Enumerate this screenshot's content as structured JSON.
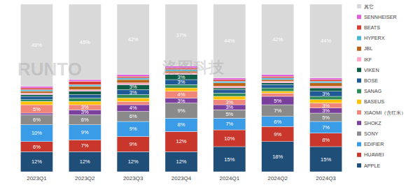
{
  "chart_data": {
    "type": "bar",
    "stacked": true,
    "data_labels": true,
    "legend": "right",
    "tick_labels": "x",
    "grid": false,
    "ylim": [
      0,
      100
    ],
    "annotations": [
      "RUNTO",
      "洛图科技"
    ],
    "categories": [
      "2023Q1",
      "2023Q2",
      "2023Q3",
      "2023Q4",
      "2024Q1",
      "2024Q2",
      "2024Q3"
    ],
    "series": [
      {
        "name": "APPLE",
        "color": "#1f4e79",
        "values": [
          12,
          12,
          12,
          12,
          15,
          18,
          15
        ],
        "value_labels": [
          "12%",
          "12%",
          "12%",
          "12%",
          "15%",
          "18%",
          "15%"
        ]
      },
      {
        "name": "HUAWEI",
        "color": "#c9372c",
        "values": [
          6,
          7,
          9,
          12,
          10,
          9,
          8
        ],
        "value_labels": [
          "6%",
          "7%",
          "9%",
          "12%",
          "10%",
          "9%",
          "8%"
        ]
      },
      {
        "name": "EDIFIER",
        "color": "#3a9be6",
        "values": [
          10,
          9,
          9,
          8,
          7,
          6,
          7
        ],
        "value_labels": [
          "10%",
          "9%",
          "9%",
          "8%",
          "7%",
          "6%",
          "7%"
        ]
      },
      {
        "name": "SONY",
        "color": "#8a8a8a",
        "values": [
          6,
          6,
          6,
          9,
          5,
          7,
          5
        ],
        "value_labels": [
          "6%",
          "6%",
          "6%",
          "9%",
          "5%",
          "7%",
          "5%"
        ]
      },
      {
        "name": "SHOKZ",
        "color": "#7b3f9e",
        "values": [
          1,
          3,
          4,
          3,
          3,
          5,
          3
        ],
        "value_labels": [
          null,
          "3%",
          "4%",
          "3%",
          "3%",
          "5%",
          "3%"
        ]
      },
      {
        "name": "XIAOMI（含红米）",
        "color": "#f0857a",
        "values": [
          5,
          3,
          2,
          4,
          3,
          2,
          3
        ],
        "value_labels": [
          "5%",
          "3%",
          null,
          "4%",
          "3%",
          null,
          "3%"
        ]
      },
      {
        "name": "BASEUS",
        "color": "#ffc000",
        "values": [
          2,
          2,
          2,
          2,
          2,
          1,
          2
        ],
        "value_labels": [
          null,
          null,
          null,
          null,
          null,
          null,
          null
        ]
      },
      {
        "name": "SANAG",
        "color": "#2e8b57",
        "values": [
          1,
          2,
          2,
          2,
          2,
          2,
          2
        ],
        "value_labels": [
          null,
          null,
          null,
          null,
          null,
          null,
          null
        ]
      },
      {
        "name": "BOSE",
        "color": "#1f5a96",
        "values": [
          2,
          2,
          3,
          3,
          2,
          2,
          3
        ],
        "value_labels": [
          null,
          null,
          "3%",
          "3%",
          null,
          null,
          "3%"
        ]
      },
      {
        "name": "VIKEN",
        "color": "#0e5e47",
        "values": [
          1,
          2,
          3,
          3,
          1,
          1,
          2
        ],
        "value_labels": [
          null,
          null,
          "3%",
          "3%",
          null,
          null,
          null
        ]
      },
      {
        "name": "IKF",
        "color": "#ffa6c4",
        "values": [
          1,
          1,
          1,
          1,
          1,
          1,
          1
        ],
        "value_labels": [
          null,
          null,
          null,
          null,
          null,
          null,
          null
        ]
      },
      {
        "name": "JBL",
        "color": "#b8651b",
        "values": [
          1,
          2,
          2,
          1,
          2,
          1,
          2
        ],
        "value_labels": [
          null,
          null,
          null,
          null,
          null,
          null,
          null
        ]
      },
      {
        "name": "HYPERX",
        "color": "#49b6d6",
        "values": [
          1,
          1,
          1,
          1,
          1,
          1,
          1
        ],
        "value_labels": [
          null,
          null,
          null,
          null,
          null,
          null,
          null
        ]
      },
      {
        "name": "BEATS",
        "color": "#d83a34",
        "values": [
          1,
          2,
          1,
          1,
          1,
          1,
          1
        ],
        "value_labels": [
          null,
          null,
          null,
          null,
          null,
          null,
          null
        ]
      },
      {
        "name": "SENNHEISER",
        "color": "#dd5fdd",
        "values": [
          1,
          1,
          1,
          1,
          1,
          1,
          1
        ],
        "value_labels": [
          null,
          null,
          null,
          null,
          null,
          null,
          null
        ]
      },
      {
        "name": "其它",
        "color": "#d9d9d9",
        "values": [
          49,
          45,
          42,
          37,
          44,
          42,
          44
        ],
        "value_labels": [
          "49%",
          "45%",
          "42%",
          "37%",
          "44%",
          "42%",
          "44%"
        ]
      }
    ]
  }
}
